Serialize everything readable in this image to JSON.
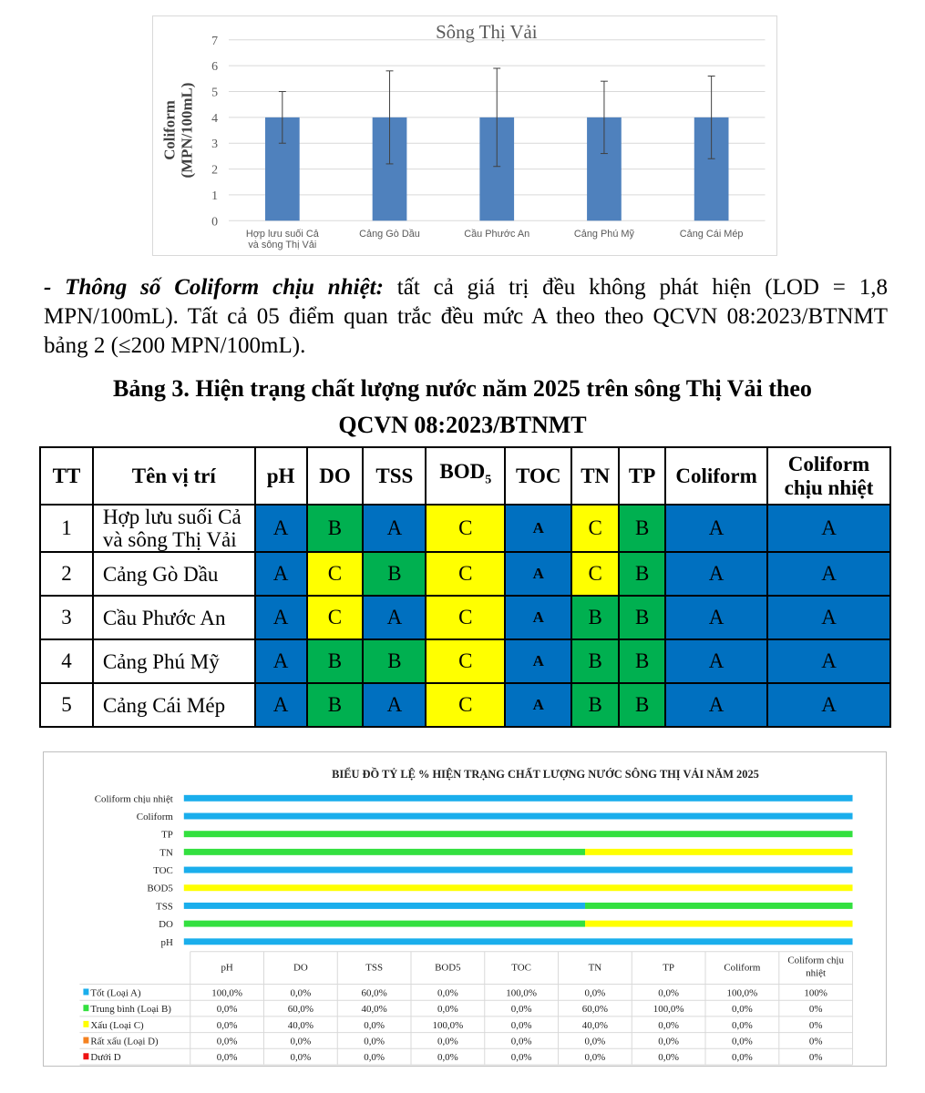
{
  "chart_data": [
    {
      "type": "bar",
      "title": "Sông Thị Vải",
      "ylabel": "Coliform (MPN/100mL)",
      "xlabel": "",
      "ylim": [
        0,
        7
      ],
      "yticks": [
        0,
        1,
        2,
        3,
        4,
        5,
        6,
        7
      ],
      "grid": true,
      "categories": [
        "Hợp lưu suối Cả và sông Thị Vải",
        "Cảng Gò Dầu",
        "Cầu Phước An",
        "Cảng Phú Mỹ",
        "Cảng Cái Mép"
      ],
      "values": [
        4,
        4,
        4,
        4,
        4
      ],
      "error_low": [
        3.0,
        2.2,
        2.1,
        2.6,
        2.4
      ],
      "error_high": [
        5.0,
        5.8,
        5.9,
        5.4,
        5.6
      ],
      "color": "#4f81bd"
    },
    {
      "type": "bar",
      "orientation": "horizontal-stacked-percent",
      "title": "BIỂU ĐỒ TỶ LỆ % HIỆN TRẠNG CHẤT LƯỢNG NƯỚC SÔNG THỊ VẢI  NĂM 2025",
      "categories": [
        "pH",
        "DO",
        "TSS",
        "BOD5",
        "TOC",
        "TN",
        "TP",
        "Coliform",
        "Coliform chịu nhiệt"
      ],
      "bar_labels": [
        "pH",
        "DO",
        "TSS",
        "BOD5",
        "TOC",
        "TN",
        "TP",
        "Coliform",
        "Coliform chịu nhiệt"
      ],
      "series": [
        {
          "name": "Tốt (Loại A)",
          "color": "#1aaeec",
          "values": [
            100,
            0,
            60,
            0,
            100,
            0,
            0,
            100,
            100
          ],
          "labels": [
            "100,0%",
            "0,0%",
            "60,0%",
            "0,0%",
            "100,0%",
            "0,0%",
            "0,0%",
            "100,0%",
            "100%"
          ]
        },
        {
          "name": "Trung bình (Loại B)",
          "color": "#33e03f",
          "values": [
            0,
            60,
            40,
            0,
            0,
            60,
            100,
            0,
            0
          ],
          "labels": [
            "0,0%",
            "60,0%",
            "40,0%",
            "0,0%",
            "0,0%",
            "60,0%",
            "100,0%",
            "0,0%",
            "0%"
          ]
        },
        {
          "name": "Xấu (Loại C)",
          "color": "#ffff00",
          "values": [
            0,
            40,
            0,
            100,
            0,
            40,
            0,
            0,
            0
          ],
          "labels": [
            "0,0%",
            "40,0%",
            "0,0%",
            "100,0%",
            "0,0%",
            "40,0%",
            "0,0%",
            "0,0%",
            "0%"
          ]
        },
        {
          "name": "Rất xấu (Loại D)",
          "color": "#f58220",
          "values": [
            0,
            0,
            0,
            0,
            0,
            0,
            0,
            0,
            0
          ],
          "labels": [
            "0,0%",
            "0,0%",
            "0,0%",
            "0,0%",
            "0,0%",
            "0,0%",
            "0,0%",
            "0,0%",
            "0%"
          ]
        },
        {
          "name": "Dưới D",
          "color": "#ee1111",
          "values": [
            0,
            0,
            0,
            0,
            0,
            0,
            0,
            0,
            0
          ],
          "labels": [
            "0,0%",
            "0,0%",
            "0,0%",
            "0,0%",
            "0,0%",
            "0,0%",
            "0,0%",
            "0,0%",
            "0%"
          ]
        }
      ],
      "xlim": [
        0,
        100
      ],
      "legend": "data-table"
    }
  ],
  "paragraph": {
    "lead": "- Thông số Coliform chịu nhiệt:",
    "text": " tất cả giá trị đều không phát hiện (LOD = 1,8 MPN/100mL). Tất cả 05 điểm quan trắc đều mức A theo theo QCVN 08:2023/BTNMT bảng 2 (≤200 MPN/100mL)."
  },
  "table_title": {
    "line1": "Bảng 3. Hiện trạng chất lượng nước năm 2025 trên sông Thị Vải theo",
    "line2": "QCVN 08:2023/BTNMT"
  },
  "table": {
    "headers": [
      "TT",
      "Tên vị trí",
      "pH",
      "DO",
      "TSS",
      "BOD",
      "TOC",
      "TN",
      "TP",
      "Coliform",
      "Coliform chịu nhiệt"
    ],
    "bod_sub": "5",
    "rows": [
      [
        "1",
        "Hợp lưu suối Cả và sông Thị Vải",
        "A",
        "B",
        "A",
        "C",
        "A",
        "C",
        "B",
        "A",
        "A"
      ],
      [
        "2",
        "Cảng Gò Dầu",
        "A",
        "C",
        "B",
        "C",
        "A",
        "C",
        "B",
        "A",
        "A"
      ],
      [
        "3",
        "Cầu Phước An",
        "A",
        "C",
        "A",
        "C",
        "A",
        "B",
        "B",
        "A",
        "A"
      ],
      [
        "4",
        "Cảng Phú Mỹ",
        "A",
        "B",
        "B",
        "C",
        "A",
        "B",
        "B",
        "A",
        "A"
      ],
      [
        "5",
        "Cảng Cái Mép",
        "A",
        "B",
        "A",
        "C",
        "A",
        "B",
        "B",
        "A",
        "A"
      ]
    ]
  }
}
